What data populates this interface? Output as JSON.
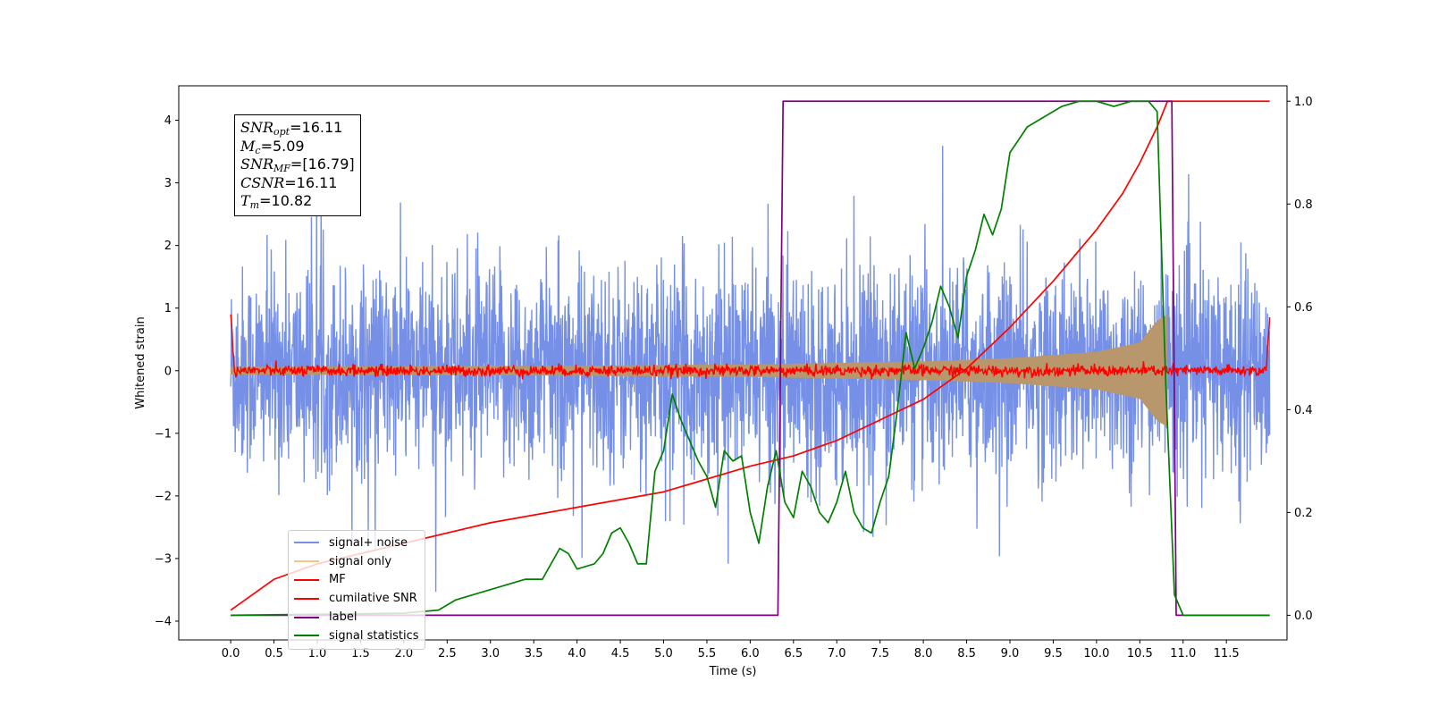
{
  "chart_data": {
    "type": "line",
    "xlabel": "Time (s)",
    "ylabel": "Whitened strain",
    "xlim": [
      -0.6,
      12.2
    ],
    "ylim": [
      -4.3,
      4.55
    ],
    "y2lim": [
      -0.048,
      1.03
    ],
    "x_ticks": [
      "0.0",
      "0.5",
      "1.0",
      "1.5",
      "2.0",
      "2.5",
      "3.0",
      "3.5",
      "4.0",
      "4.5",
      "5.0",
      "5.5",
      "6.0",
      "6.5",
      "7.0",
      "7.5",
      "8.0",
      "8.5",
      "9.0",
      "9.5",
      "10.0",
      "10.5",
      "11.0",
      "11.5"
    ],
    "y_ticks": [
      "4",
      "3",
      "2",
      "1",
      "0",
      "−1",
      "−2",
      "−3",
      "−4"
    ],
    "y2_ticks": [
      "1.0",
      "0.8",
      "0.6",
      "0.4",
      "0.2",
      "0.0"
    ],
    "info": {
      "snr_opt": "=16.11",
      "mc": "=5.09",
      "snr_mf": "=[16.79]",
      "csnr": "=16.11",
      "tm": "=10.82"
    },
    "series": [
      {
        "name": "signal+ noise",
        "color": "#7590e6",
        "axis": "left",
        "description": "whitened noise, std ~1, spikes to about ±4"
      },
      {
        "name": "signal only",
        "color": "#f5c77e",
        "axis": "left",
        "envelope": {
          "t": [
            0,
            2,
            4,
            6,
            8,
            9,
            10,
            10.5,
            10.7,
            10.82
          ],
          "amp": [
            0.06,
            0.07,
            0.08,
            0.1,
            0.15,
            0.2,
            0.3,
            0.45,
            0.8,
            0.9
          ]
        }
      },
      {
        "name": "MF",
        "color": "#ff0000",
        "axis": "left",
        "description": "matched filter output near 0, edge spikes",
        "edges": {
          "start": 1.0,
          "end": 0.92
        }
      },
      {
        "name": "cumilative SNR",
        "color": "#ff0000",
        "axis": "right",
        "x": [
          0.0,
          0.5,
          1.0,
          2.0,
          3.0,
          4.0,
          5.0,
          6.0,
          6.5,
          7.0,
          7.5,
          8.0,
          8.5,
          9.0,
          9.5,
          10.0,
          10.3,
          10.5,
          10.7,
          10.82,
          12.0
        ],
        "y": [
          0.01,
          0.07,
          0.1,
          0.14,
          0.18,
          0.21,
          0.24,
          0.29,
          0.31,
          0.34,
          0.38,
          0.42,
          0.48,
          0.56,
          0.65,
          0.75,
          0.82,
          0.88,
          0.95,
          1.0,
          1.0
        ]
      },
      {
        "name": "label",
        "color": "#800080",
        "axis": "right",
        "x": [
          0.0,
          6.32,
          6.38,
          10.87,
          10.92,
          12.0
        ],
        "y": [
          0.0,
          0.0,
          1.0,
          1.0,
          0.0,
          0.0
        ]
      },
      {
        "name": "signal statistics",
        "color": "#008000",
        "axis": "right",
        "x": [
          0.0,
          2.0,
          2.4,
          2.6,
          2.8,
          3.0,
          3.2,
          3.4,
          3.6,
          3.8,
          3.9,
          4.0,
          4.2,
          4.3,
          4.4,
          4.5,
          4.6,
          4.7,
          4.8,
          4.9,
          5.0,
          5.1,
          5.2,
          5.3,
          5.4,
          5.5,
          5.6,
          5.7,
          5.8,
          5.9,
          6.0,
          6.1,
          6.2,
          6.3,
          6.4,
          6.5,
          6.6,
          6.7,
          6.8,
          6.9,
          7.0,
          7.1,
          7.2,
          7.3,
          7.4,
          7.5,
          7.6,
          7.7,
          7.8,
          7.9,
          8.0,
          8.1,
          8.2,
          8.3,
          8.4,
          8.5,
          8.6,
          8.7,
          8.8,
          8.9,
          9.0,
          9.2,
          9.4,
          9.6,
          9.8,
          10.0,
          10.2,
          10.4,
          10.6,
          10.7,
          10.8,
          10.9,
          11.0,
          12.0
        ],
        "y": [
          0.0,
          0.004,
          0.01,
          0.03,
          0.04,
          0.05,
          0.06,
          0.07,
          0.07,
          0.13,
          0.12,
          0.09,
          0.1,
          0.12,
          0.16,
          0.17,
          0.14,
          0.1,
          0.1,
          0.28,
          0.32,
          0.43,
          0.38,
          0.34,
          0.3,
          0.27,
          0.21,
          0.32,
          0.3,
          0.31,
          0.2,
          0.14,
          0.25,
          0.32,
          0.22,
          0.19,
          0.28,
          0.25,
          0.2,
          0.18,
          0.22,
          0.28,
          0.2,
          0.17,
          0.16,
          0.22,
          0.27,
          0.4,
          0.55,
          0.48,
          0.52,
          0.57,
          0.64,
          0.6,
          0.54,
          0.66,
          0.71,
          0.78,
          0.74,
          0.79,
          0.9,
          0.95,
          0.97,
          0.99,
          1.0,
          1.0,
          0.99,
          1.0,
          1.0,
          0.98,
          0.45,
          0.04,
          0.0,
          0.0
        ]
      }
    ],
    "legend_position": "lower-left"
  }
}
